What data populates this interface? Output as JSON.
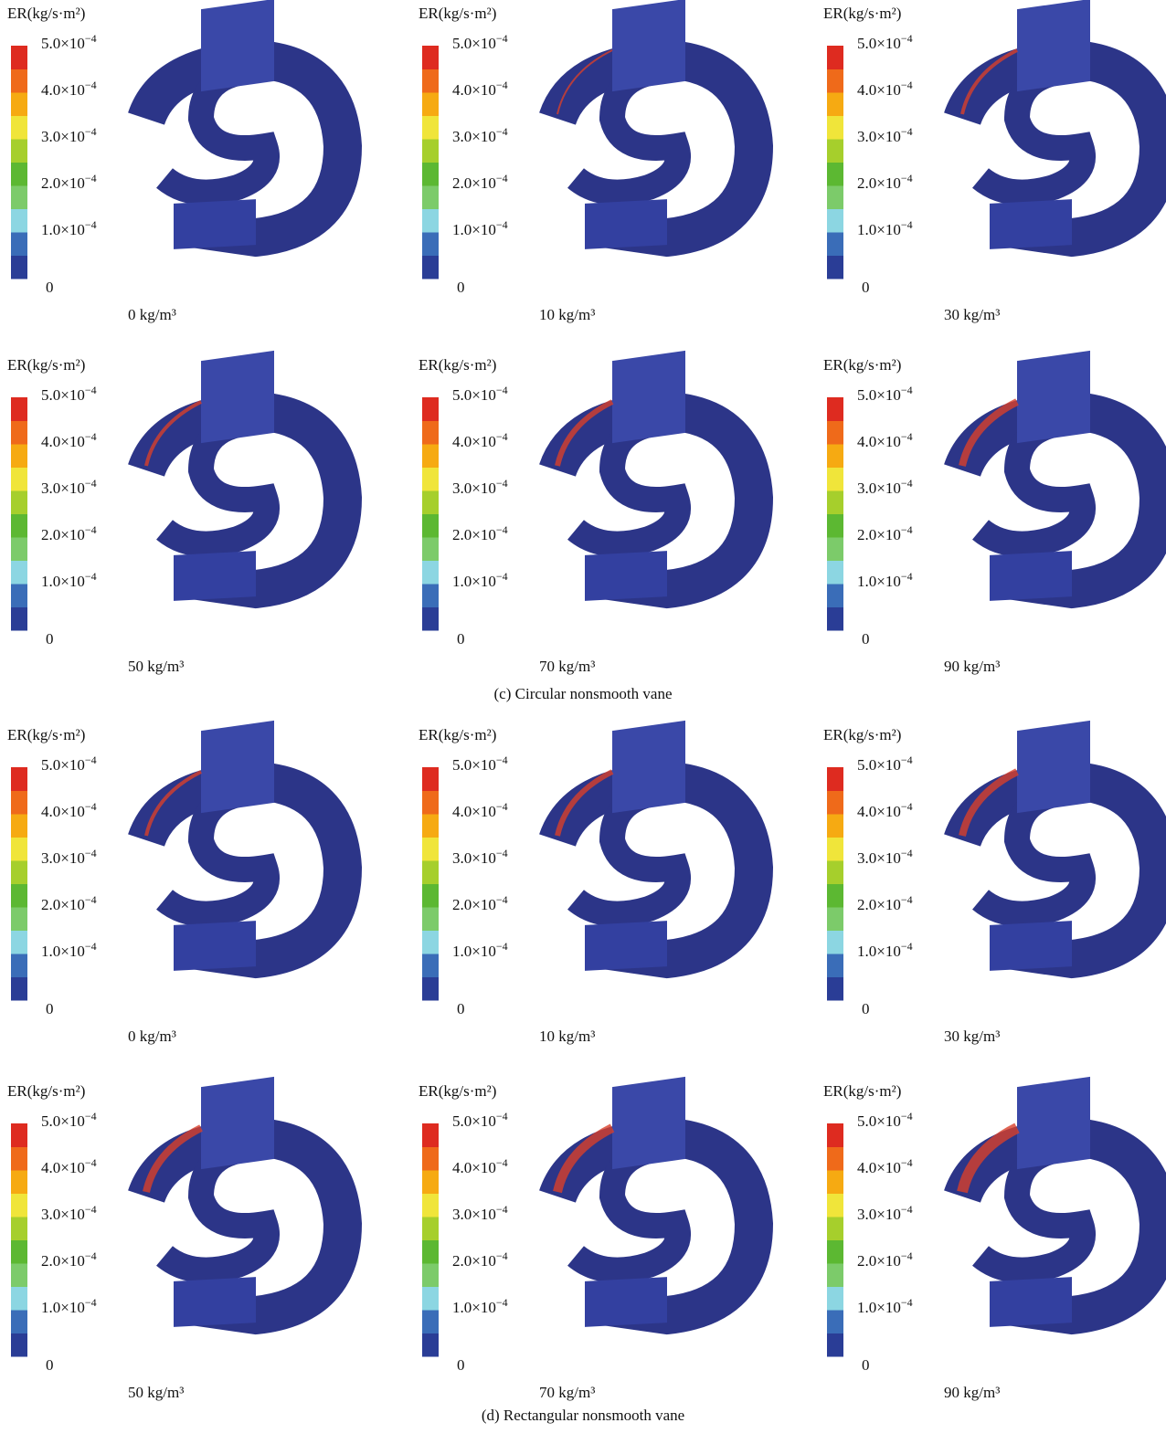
{
  "colorbar": {
    "title": "ER(kg/s·m²)",
    "ticks": [
      {
        "base": "5.0×10",
        "exp": "−4"
      },
      {
        "base": "4.0×10",
        "exp": "−4"
      },
      {
        "base": "3.0×10",
        "exp": "−4"
      },
      {
        "base": "2.0×10",
        "exp": "−4"
      },
      {
        "base": "1.0×10",
        "exp": "−4"
      },
      {
        "base": "0"
      }
    ],
    "colors": [
      "#2a3d96",
      "#3a6db8",
      "#8cd6e2",
      "#7ccb6a",
      "#5cb832",
      "#a6cf2c",
      "#f0e53a",
      "#f6aa12",
      "#ef6a1a",
      "#de2b20"
    ]
  },
  "groups": [
    {
      "caption": "(c) Circular nonsmooth vane",
      "panels": [
        "0 kg/m³",
        "10 kg/m³",
        "30 kg/m³",
        "50 kg/m³",
        "70 kg/m³",
        "90 kg/m³"
      ]
    },
    {
      "caption": "(d) Rectangular nonsmooth vane",
      "panels": [
        "0 kg/m³",
        "10 kg/m³",
        "30 kg/m³",
        "50 kg/m³",
        "70 kg/m³",
        "90 kg/m³"
      ]
    }
  ]
}
